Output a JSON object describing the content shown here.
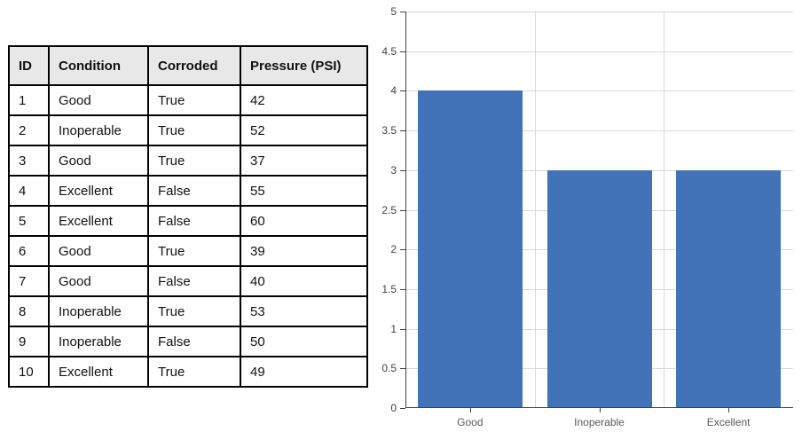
{
  "table": {
    "headers": [
      "ID",
      "Condition",
      "Corroded",
      "Pressure (PSI)"
    ],
    "rows": [
      [
        "1",
        "Good",
        "True",
        "42"
      ],
      [
        "2",
        "Inoperable",
        "True",
        "52"
      ],
      [
        "3",
        "Good",
        "True",
        "37"
      ],
      [
        "4",
        "Excellent",
        "False",
        "55"
      ],
      [
        "5",
        "Excellent",
        "False",
        "60"
      ],
      [
        "6",
        "Good",
        "True",
        "39"
      ],
      [
        "7",
        "Good",
        "False",
        "40"
      ],
      [
        "8",
        "Inoperable",
        "True",
        "53"
      ],
      [
        "9",
        "Inoperable",
        "False",
        "50"
      ],
      [
        "10",
        "Excellent",
        "True",
        "49"
      ]
    ]
  },
  "chart_data": {
    "type": "bar",
    "categories": [
      "Good",
      "Inoperable",
      "Excellent"
    ],
    "values": [
      4,
      3,
      3
    ],
    "title": "",
    "xlabel": "",
    "ylabel": "",
    "ylim": [
      0,
      5
    ],
    "ytick_step": 0.5,
    "ytick_labels": [
      "0",
      "0.5",
      "1",
      "1.5",
      "2",
      "2.5",
      "3",
      "3.5",
      "4",
      "4.5",
      "5"
    ],
    "grid": true,
    "legend": "none"
  },
  "colors": {
    "bar_fill": "#4272b8",
    "gridline": "#d9d9d9",
    "axis_line": "#404040",
    "table_header_bg": "#e8e8e8",
    "table_border": "#000000"
  }
}
